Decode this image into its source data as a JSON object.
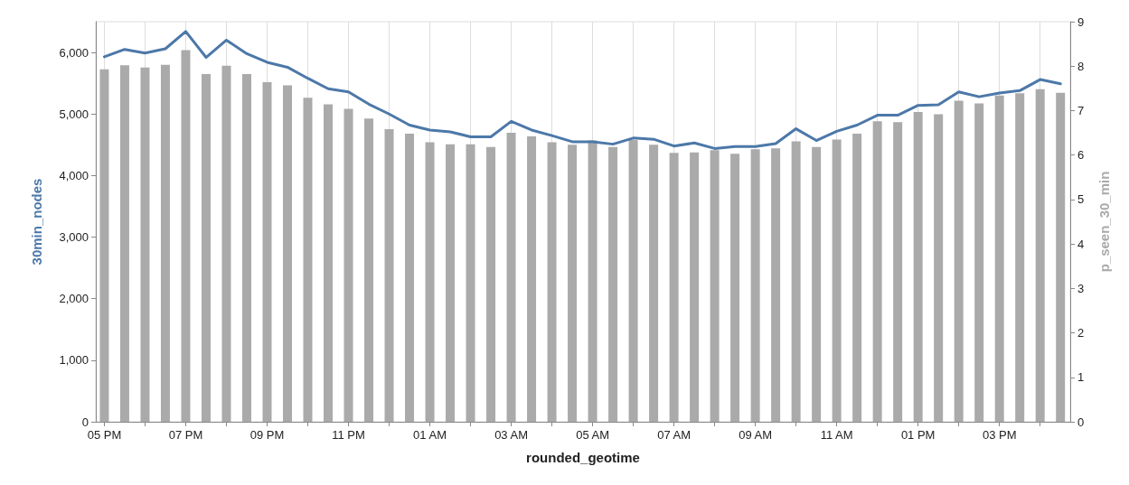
{
  "chart_data": {
    "type": "bar",
    "xlabel": "rounded_geotime",
    "ylabel": "30min_nodes",
    "y2label": "p_seen_30_min",
    "categories": [
      "05 PM",
      null,
      null,
      null,
      "07 PM",
      null,
      null,
      null,
      "09 PM",
      null,
      null,
      null,
      "11 PM",
      null,
      null,
      null,
      "01 AM",
      null,
      null,
      null,
      "03 AM",
      null,
      null,
      null,
      "05 AM",
      null,
      null,
      null,
      "07 AM",
      null,
      null,
      null,
      "09 AM",
      null,
      null,
      null,
      "11 AM",
      null,
      null,
      null,
      "01 PM",
      null,
      null,
      null,
      "03 PM",
      null,
      null,
      null
    ],
    "series": [
      {
        "axis": "y2",
        "color": "#aaaaaa",
        "values": [
          7.93,
          8.02,
          7.97,
          8.03,
          8.36,
          7.82,
          8.01,
          7.82,
          7.64,
          7.57,
          7.29,
          7.14,
          7.04,
          6.82,
          6.58,
          6.48,
          6.29,
          6.24,
          6.24,
          6.18,
          6.5,
          6.42,
          6.29,
          6.23,
          6.33,
          6.18,
          6.34,
          6.23,
          6.05,
          6.06,
          6.11,
          6.03,
          6.13,
          6.15,
          6.31,
          6.18,
          6.35,
          6.48,
          6.76,
          6.74,
          6.97,
          6.92,
          7.22,
          7.16,
          7.34,
          7.39,
          7.48,
          7.4
        ]
      },
      {
        "type": "line",
        "color": "#4c78a8",
        "values": [
          5930,
          6050,
          5990,
          6060,
          6340,
          5920,
          6200,
          5980,
          5840,
          5760,
          5580,
          5410,
          5360,
          5160,
          5000,
          4820,
          4740,
          4710,
          4630,
          4630,
          4880,
          4740,
          4650,
          4550,
          4550,
          4510,
          4610,
          4590,
          4480,
          4530,
          4440,
          4470,
          4470,
          4520,
          4760,
          4570,
          4720,
          4820,
          4980,
          4980,
          5140,
          5150,
          5360,
          5280,
          5340,
          5380,
          5560,
          5490
        ]
      }
    ],
    "ylim": [
      0,
      6500
    ],
    "yticks": [
      0,
      {
        "value": 1000,
        "label": "1,000"
      },
      {
        "value": 2000,
        "label": "2,000"
      },
      {
        "value": 3000,
        "label": "3,000"
      },
      {
        "value": 4000,
        "label": "4,000"
      },
      {
        "value": 5000,
        "label": "5,000"
      },
      {
        "value": 6000,
        "label": "6,000"
      }
    ],
    "y2lim": [
      0,
      9
    ],
    "y2ticks": [
      0,
      1,
      2,
      3,
      4,
      5,
      6,
      7,
      8,
      9
    ],
    "grid": "x",
    "marker": "none",
    "line_style": "solid"
  }
}
